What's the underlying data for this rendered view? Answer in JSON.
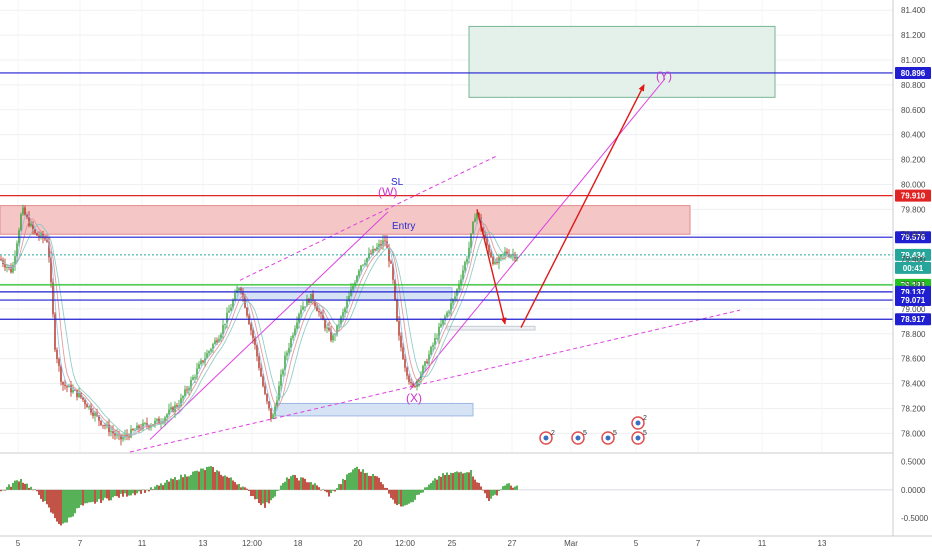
{
  "chart_data": {
    "type": "candlestick",
    "price_axis": {
      "ticks": [
        "81.400",
        "81.200",
        "81.000",
        "80.800",
        "80.600",
        "80.400",
        "80.200",
        "80.000",
        "79.800",
        "79.600",
        "79.400",
        "79.200",
        "79.000",
        "78.800",
        "78.600",
        "78.400",
        "78.200",
        "78.000"
      ],
      "range": [
        77.85,
        81.45
      ]
    },
    "oscillator_axis": {
      "ticks": [
        "0.5000",
        "0.0000",
        "-0.5000"
      ],
      "range": [
        -0.75,
        0.62
      ]
    },
    "time_axis": {
      "labels": [
        "5",
        "7",
        "11",
        "13",
        "12:00",
        "18",
        "20",
        "12:00",
        "25",
        "27",
        "Mar",
        "5",
        "7",
        "11",
        "13"
      ]
    },
    "price_levels": [
      {
        "label": "80.896",
        "value": 80.896,
        "color": "#1f1fd1"
      },
      {
        "label": "79.910",
        "value": 79.91,
        "color": "#e02424"
      },
      {
        "label": "79.576",
        "value": 79.576,
        "color": "#1f1fd1"
      },
      {
        "label": "79.434",
        "value": 79.434,
        "color": "#26a69a"
      },
      {
        "label": "00:41",
        "value": 79.37,
        "color": "#26a69a"
      },
      {
        "label": "79.193",
        "value": 79.193,
        "color": "#22c022"
      },
      {
        "label": "79.137",
        "value": 79.137,
        "color": "#1f1fd1"
      },
      {
        "label": "79.071",
        "value": 79.071,
        "color": "#1f1fd1"
      },
      {
        "label": "78.917",
        "value": 78.917,
        "color": "#1f1fd1"
      }
    ],
    "annotations": {
      "wave_w": "(W)",
      "wave_x": "(X)",
      "wave_y": "(Y)",
      "stop_loss": "SL",
      "entry": "Entry"
    },
    "event_icons": [
      {
        "count": "2"
      },
      {
        "count": "5"
      },
      {
        "count": "5"
      },
      {
        "count": "2"
      },
      {
        "count": "5"
      }
    ],
    "price_path": [
      [
        0,
        79.4
      ],
      [
        12,
        79.3
      ],
      [
        22,
        79.8
      ],
      [
        35,
        79.6
      ],
      [
        48,
        79.55
      ],
      [
        55,
        78.7
      ],
      [
        62,
        78.4
      ],
      [
        80,
        78.3
      ],
      [
        100,
        78.1
      ],
      [
        120,
        77.95
      ],
      [
        140,
        78.05
      ],
      [
        160,
        78.1
      ],
      [
        180,
        78.25
      ],
      [
        200,
        78.55
      ],
      [
        220,
        78.8
      ],
      [
        240,
        79.2
      ],
      [
        255,
        78.7
      ],
      [
        265,
        78.3
      ],
      [
        272,
        78.1
      ],
      [
        285,
        78.6
      ],
      [
        300,
        79.0
      ],
      [
        312,
        79.1
      ],
      [
        320,
        78.95
      ],
      [
        332,
        78.75
      ],
      [
        345,
        79.0
      ],
      [
        360,
        79.35
      ],
      [
        372,
        79.45
      ],
      [
        385,
        79.55
      ],
      [
        392,
        79.3
      ],
      [
        398,
        78.8
      ],
      [
        405,
        78.55
      ],
      [
        412,
        78.35
      ],
      [
        425,
        78.55
      ],
      [
        440,
        78.85
      ],
      [
        455,
        79.1
      ],
      [
        468,
        79.45
      ],
      [
        476,
        79.8
      ],
      [
        485,
        79.55
      ],
      [
        495,
        79.35
      ],
      [
        505,
        79.45
      ],
      [
        518,
        79.43
      ]
    ],
    "oscillator_path": [
      [
        0,
        -0.05
      ],
      [
        20,
        0.2
      ],
      [
        40,
        -0.1
      ],
      [
        55,
        -0.5
      ],
      [
        62,
        -0.65
      ],
      [
        80,
        -0.3
      ],
      [
        110,
        -0.15
      ],
      [
        150,
        0.0
      ],
      [
        175,
        0.2
      ],
      [
        210,
        0.4
      ],
      [
        240,
        0.1
      ],
      [
        265,
        -0.3
      ],
      [
        290,
        0.25
      ],
      [
        310,
        0.15
      ],
      [
        330,
        -0.1
      ],
      [
        355,
        0.4
      ],
      [
        380,
        0.2
      ],
      [
        398,
        -0.3
      ],
      [
        412,
        -0.2
      ],
      [
        440,
        0.25
      ],
      [
        470,
        0.35
      ],
      [
        490,
        -0.2
      ],
      [
        505,
        0.1
      ],
      [
        518,
        0.05
      ]
    ]
  }
}
